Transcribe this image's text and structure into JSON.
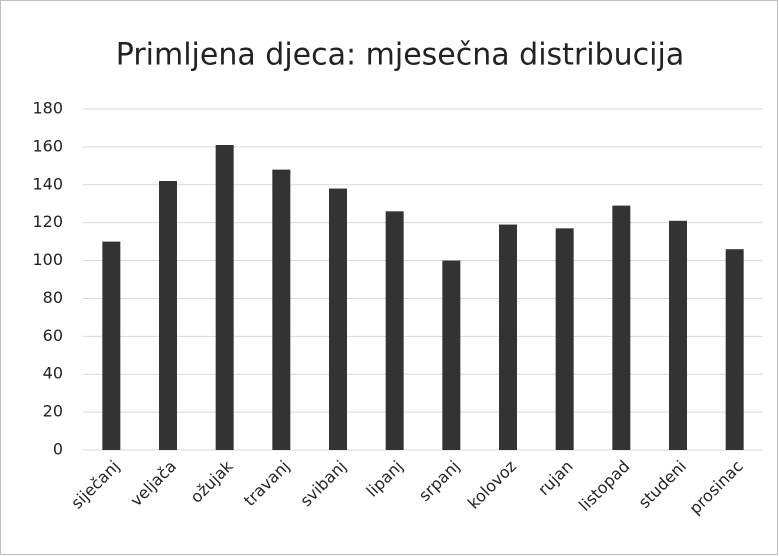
{
  "chart_data": {
    "type": "bar",
    "title": "Primljena djeca: mjesečna distribucija",
    "categories": [
      "siječanj",
      "veljača",
      "ožujak",
      "travanj",
      "svibanj",
      "lipanj",
      "srpanj",
      "kolovoz",
      "rujan",
      "listopad",
      "studeni",
      "prosinac"
    ],
    "values": [
      110,
      142,
      161,
      148,
      138,
      126,
      100,
      119,
      117,
      129,
      121,
      106
    ],
    "color": "#333333",
    "ylim": [
      0,
      180
    ],
    "yticks": [
      0,
      20,
      40,
      60,
      80,
      100,
      120,
      140,
      160,
      180
    ],
    "grid": true
  }
}
